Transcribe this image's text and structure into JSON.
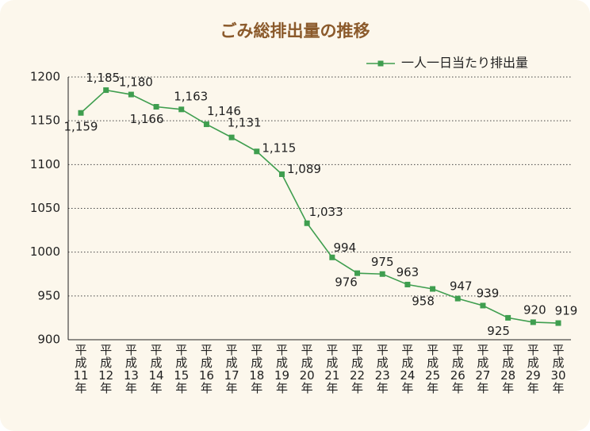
{
  "chart_data": {
    "type": "line",
    "title": "ごみ総排出量の推移",
    "categories": [
      "平成11年",
      "平成12年",
      "平成13年",
      "平成14年",
      "平成15年",
      "平成16年",
      "平成17年",
      "平成18年",
      "平成19年",
      "平成20年",
      "平成21年",
      "平成22年",
      "平成23年",
      "平成24年",
      "平成25年",
      "平成26年",
      "平成27年",
      "平成28年",
      "平成29年",
      "平成30年"
    ],
    "series": [
      {
        "name": "一人一日当たり排出量",
        "color": "#3f9e4f",
        "values": [
          1159,
          1185,
          1180,
          1166,
          1163,
          1146,
          1131,
          1115,
          1089,
          1033,
          994,
          976,
          975,
          963,
          958,
          947,
          939,
          925,
          920,
          919
        ],
        "value_labels": [
          "1,159",
          "1,185",
          "1,180",
          "1,166",
          "1,163",
          "1,146",
          "1,131",
          "1,115",
          "1,089",
          "1,033",
          "994",
          "976",
          "975",
          "963",
          "958",
          "947",
          "939",
          "925",
          "920",
          "919"
        ]
      }
    ],
    "ylim": [
      900,
      1200
    ],
    "yticks": [
      900,
      950,
      1000,
      1050,
      1100,
      1150,
      1200
    ],
    "grid": true,
    "legend": "top-right"
  }
}
